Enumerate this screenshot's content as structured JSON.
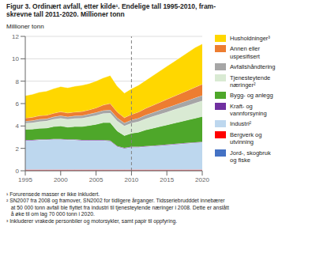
{
  "chart_data": {
    "type": "area",
    "stacked": true,
    "title": "Figur 3. Ordinært avfall, etter kilde¹. Endelige tall 1995-2010, fram-\nskrevne tall 2011-2020. Millioner tonn",
    "ylabel": "Millioner tonn",
    "x": [
      1995,
      1996,
      1997,
      1998,
      1999,
      2000,
      2001,
      2002,
      2003,
      2004,
      2005,
      2006,
      2007,
      2008,
      2009,
      2010,
      2011,
      2012,
      2013,
      2014,
      2015,
      2016,
      2017,
      2018,
      2019,
      2020
    ],
    "xlim": [
      1995,
      2020
    ],
    "xticks": [
      1995,
      2000,
      2005,
      2010,
      2015,
      2020
    ],
    "ylim": [
      0,
      12
    ],
    "yticks": [
      0,
      2,
      4,
      6,
      8,
      10,
      12
    ],
    "grid": true,
    "legend": "right",
    "series": [
      {
        "name": "Jord-, skogbruk\nog fiske",
        "color": "#4472C4",
        "values": [
          0.04,
          0.04,
          0.04,
          0.04,
          0.04,
          0.04,
          0.04,
          0.04,
          0.04,
          0.04,
          0.04,
          0.04,
          0.04,
          0.04,
          0.04,
          0.04,
          0.04,
          0.04,
          0.04,
          0.04,
          0.04,
          0.04,
          0.04,
          0.04,
          0.04,
          0.04
        ]
      },
      {
        "name": "Bergverk og\nutvinning",
        "color": "#FF0000",
        "values": [
          0.06,
          0.06,
          0.06,
          0.06,
          0.06,
          0.06,
          0.06,
          0.06,
          0.06,
          0.06,
          0.06,
          0.06,
          0.06,
          0.06,
          0.06,
          0.06,
          0.06,
          0.06,
          0.06,
          0.06,
          0.06,
          0.06,
          0.06,
          0.06,
          0.06,
          0.06
        ]
      },
      {
        "name": "Industri²",
        "color": "#BDD7EE",
        "values": [
          2.6,
          2.6,
          2.65,
          2.65,
          2.7,
          2.7,
          2.65,
          2.65,
          2.6,
          2.6,
          2.6,
          2.6,
          2.55,
          2.05,
          1.9,
          2.0,
          2.0,
          2.05,
          2.1,
          2.15,
          2.2,
          2.25,
          2.3,
          2.35,
          2.4,
          2.45
        ]
      },
      {
        "name": "Kraft- og\nvannforsyning",
        "color": "#7030A0",
        "values": [
          0.05,
          0.05,
          0.05,
          0.05,
          0.05,
          0.05,
          0.05,
          0.05,
          0.05,
          0.05,
          0.05,
          0.05,
          0.05,
          0.05,
          0.05,
          0.05,
          0.05,
          0.05,
          0.05,
          0.05,
          0.05,
          0.05,
          0.05,
          0.05,
          0.05,
          0.05
        ]
      },
      {
        "name": "Bygg- og anlegg",
        "color": "#4EA72A",
        "values": [
          0.95,
          0.97,
          1.0,
          1.02,
          1.1,
          1.15,
          1.1,
          1.15,
          1.2,
          1.3,
          1.4,
          1.55,
          1.6,
          1.35,
          1.1,
          1.2,
          1.3,
          1.45,
          1.55,
          1.65,
          1.75,
          1.85,
          1.95,
          2.05,
          2.15,
          2.25
        ]
      },
      {
        "name": "Tjenesteytende\nnæringer²",
        "color": "#D9EAD3",
        "values": [
          0.55,
          0.57,
          0.6,
          0.62,
          0.65,
          0.7,
          0.7,
          0.72,
          0.75,
          0.77,
          0.8,
          0.82,
          0.85,
          0.9,
          0.85,
          0.9,
          0.95,
          1.0,
          1.05,
          1.1,
          1.15,
          1.2,
          1.25,
          1.3,
          1.35,
          1.4
        ]
      },
      {
        "name": "Avfallshåndtering",
        "color": "#A6A6A6",
        "values": [
          0.18,
          0.19,
          0.2,
          0.2,
          0.21,
          0.22,
          0.22,
          0.23,
          0.23,
          0.24,
          0.25,
          0.27,
          0.28,
          0.28,
          0.27,
          0.28,
          0.3,
          0.32,
          0.34,
          0.36,
          0.38,
          0.4,
          0.42,
          0.44,
          0.46,
          0.48
        ]
      },
      {
        "name": "Annen eller\nuspesifisert",
        "color": "#ED7D31",
        "values": [
          0.28,
          0.3,
          0.32,
          0.32,
          0.33,
          0.35,
          0.35,
          0.35,
          0.36,
          0.38,
          0.42,
          0.48,
          0.58,
          0.52,
          0.47,
          0.5,
          0.55,
          0.6,
          0.65,
          0.7,
          0.75,
          0.8,
          0.85,
          0.9,
          0.95,
          1.0
        ]
      },
      {
        "name": "Husholdninger³",
        "color": "#FFD700",
        "values": [
          2.0,
          2.05,
          2.1,
          2.15,
          2.2,
          2.25,
          2.25,
          2.3,
          2.35,
          2.35,
          2.4,
          2.42,
          2.5,
          2.3,
          2.2,
          2.3,
          2.4,
          2.5,
          2.65,
          2.8,
          2.95,
          3.1,
          3.25,
          3.4,
          3.55,
          3.6
        ]
      }
    ],
    "reference_lines": [
      {
        "x": 2010,
        "line_style": "dashed",
        "color": "gray"
      }
    ],
    "footnote": "¹ Forurensede masser er ikke inkludert.\n² SN2007 fra 2008 og framover, SN2002 for tidligere årganger. Tidsseriebrudddet innebærer\n   at 50 000 tonn avfall ble flyttet fra industri til tjenesteytende næringer i 2008. Dette er anslått\n   å øke til om lag 70 000 tonn i 2020.\n³ Inkluderer vrakede personbiler og motorsykler, samt papir til oppfyring."
  }
}
